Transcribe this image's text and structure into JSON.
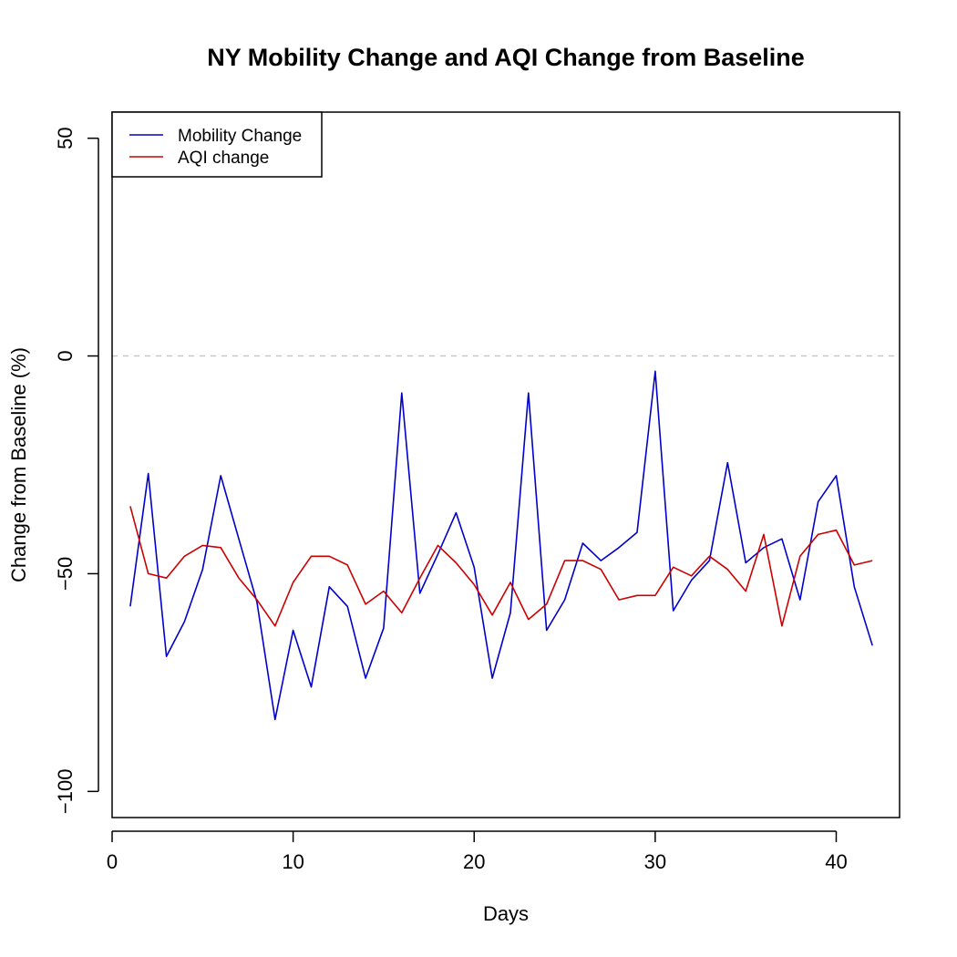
{
  "chart_data": {
    "type": "line",
    "title": "NY Mobility Change and AQI Change from Baseline",
    "xlabel": "Days",
    "ylabel": "Change from Baseline (%)",
    "xlim": [
      0,
      43.5
    ],
    "ylim": [
      -106,
      56
    ],
    "x_ticks": [
      0,
      10,
      20,
      30,
      40
    ],
    "y_ticks": [
      -100,
      -50,
      0,
      50
    ],
    "reference_line": {
      "y": 0,
      "style": "dashed",
      "color": "#c8c8c8"
    },
    "legend_position": "top-left",
    "x": [
      1,
      2,
      3,
      4,
      5,
      6,
      7,
      8,
      9,
      10,
      11,
      12,
      13,
      14,
      15,
      16,
      17,
      18,
      19,
      20,
      21,
      22,
      23,
      24,
      25,
      26,
      27,
      28,
      29,
      30,
      31,
      32,
      33,
      34,
      35,
      36,
      37,
      38,
      39,
      40,
      41,
      42
    ],
    "series": [
      {
        "name": "Mobility Change",
        "color": "#0000cc",
        "values": [
          -57.5,
          -27,
          -69,
          -61,
          -49,
          -27.5,
          -42,
          -56.5,
          -83.5,
          -63,
          -76,
          -53,
          -57.5,
          -74,
          -62.5,
          -8.5,
          -54.5,
          -45.5,
          -36,
          -48.5,
          -74,
          -59,
          -8.5,
          -63,
          -56,
          -43,
          -47,
          -44,
          -40.5,
          -3.5,
          -58.5,
          -51.5,
          -47,
          -24.5,
          -47.5,
          -44,
          -42,
          -56,
          -33.5,
          -27.5,
          -53,
          -66.5
        ]
      },
      {
        "name": "AQI change",
        "color": "#cc0000",
        "values": [
          -34.5,
          -50,
          -51,
          -46,
          -43.5,
          -44,
          -51,
          -56,
          -62,
          -52,
          -46,
          -46,
          -48,
          -57,
          -54,
          -59,
          -51,
          -43.5,
          -47.5,
          -52.5,
          -59.5,
          -52,
          -60.5,
          -57,
          -47,
          -47,
          -49,
          -56,
          -55,
          -55,
          -48.5,
          -50.5,
          -46,
          -49,
          -54,
          -41,
          -62,
          -46,
          -41,
          -40,
          -48,
          -47
        ]
      }
    ]
  }
}
